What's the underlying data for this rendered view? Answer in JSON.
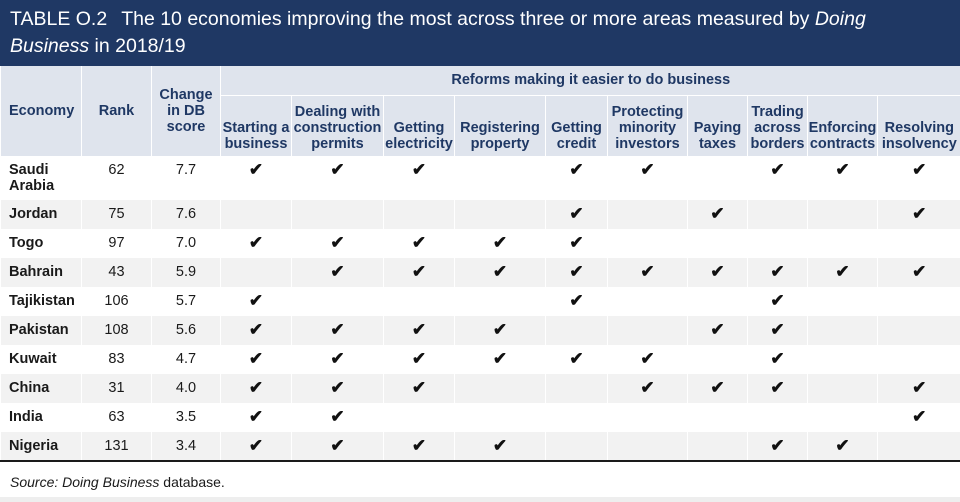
{
  "title": {
    "label": "TABLE O.2",
    "text_before": "The 10 economies improving the most across three or more areas measured by ",
    "text_italic": "Doing Business",
    "text_after": " in 2018/19"
  },
  "header": {
    "group_label": "Reforms making it easier to do business",
    "economy": "Economy",
    "rank": "Rank",
    "change": [
      "Change",
      "in DB",
      "score"
    ],
    "reforms": [
      [
        "Starting a",
        "business"
      ],
      [
        "Dealing with",
        "construction",
        "permits"
      ],
      [
        "Getting",
        "electricity"
      ],
      [
        "Registering",
        "property"
      ],
      [
        "Getting",
        "credit"
      ],
      [
        "Protecting",
        "minority",
        "investors"
      ],
      [
        "Paying",
        "taxes"
      ],
      [
        "Trading",
        "across",
        "borders"
      ],
      [
        "Enforcing",
        "contracts"
      ],
      [
        "Resolving",
        "insolvency"
      ]
    ]
  },
  "check_symbol": "✔",
  "rows": [
    {
      "economy": "Saudi Arabia",
      "rank": "62",
      "change": "7.7",
      "reforms": [
        1,
        1,
        1,
        0,
        1,
        1,
        0,
        1,
        1,
        1
      ]
    },
    {
      "economy": "Jordan",
      "rank": "75",
      "change": "7.6",
      "reforms": [
        0,
        0,
        0,
        0,
        1,
        0,
        1,
        0,
        0,
        1
      ]
    },
    {
      "economy": "Togo",
      "rank": "97",
      "change": "7.0",
      "reforms": [
        1,
        1,
        1,
        1,
        1,
        0,
        0,
        0,
        0,
        0
      ]
    },
    {
      "economy": "Bahrain",
      "rank": "43",
      "change": "5.9",
      "reforms": [
        0,
        1,
        1,
        1,
        1,
        1,
        1,
        1,
        1,
        1
      ]
    },
    {
      "economy": "Tajikistan",
      "rank": "106",
      "change": "5.7",
      "reforms": [
        1,
        0,
        0,
        0,
        1,
        0,
        0,
        1,
        0,
        0
      ]
    },
    {
      "economy": "Pakistan",
      "rank": "108",
      "change": "5.6",
      "reforms": [
        1,
        1,
        1,
        1,
        0,
        0,
        1,
        1,
        0,
        0
      ]
    },
    {
      "economy": "Kuwait",
      "rank": "83",
      "change": "4.7",
      "reforms": [
        1,
        1,
        1,
        1,
        1,
        1,
        0,
        1,
        0,
        0
      ]
    },
    {
      "economy": "China",
      "rank": "31",
      "change": "4.0",
      "reforms": [
        1,
        1,
        1,
        0,
        0,
        1,
        1,
        1,
        0,
        1
      ]
    },
    {
      "economy": "India",
      "rank": "63",
      "change": "3.5",
      "reforms": [
        1,
        1,
        0,
        0,
        0,
        0,
        0,
        0,
        0,
        1
      ]
    },
    {
      "economy": "Nigeria",
      "rank": "131",
      "change": "3.4",
      "reforms": [
        1,
        1,
        1,
        1,
        0,
        0,
        0,
        1,
        1,
        0
      ]
    }
  ],
  "source": {
    "prefix": "Source: ",
    "italic": "Doing Business",
    "suffix": " database."
  },
  "colors": {
    "title_bg": "#1f3864",
    "header_bg": "#dfe4ed",
    "header_text": "#1f3864",
    "stripe": "#f2f2f2"
  }
}
